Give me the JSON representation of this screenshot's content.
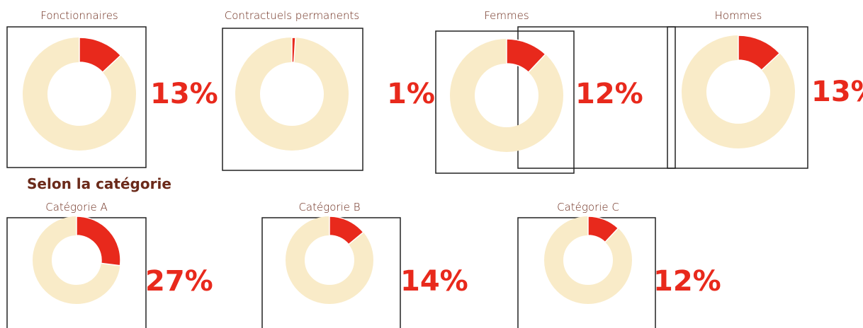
{
  "section_heading": "Selon la catégorie",
  "chart_data": [
    {
      "type": "donut",
      "title": "Fonctionnaires",
      "values": [
        13
      ],
      "value_labels": [
        "13%"
      ],
      "color": "#e8291c",
      "track_color": "#f9ebc8"
    },
    {
      "type": "donut",
      "title": "Contractuels permanents",
      "values": [
        1
      ],
      "value_labels": [
        "1%"
      ],
      "color": "#e8291c",
      "track_color": "#f9ebc8"
    },
    {
      "type": "donut",
      "title": "Femmes",
      "values": [
        12
      ],
      "value_labels": [
        "12%"
      ],
      "color": "#e8291c",
      "track_color": "#f9ebc8"
    },
    {
      "type": "donut",
      "title": "Hommes",
      "values": [
        13
      ],
      "value_labels": [
        "13%"
      ],
      "color": "#e8291c",
      "track_color": "#f9ebc8"
    },
    {
      "type": "donut",
      "title": "Catégorie A",
      "values": [
        27
      ],
      "value_labels": [
        "27%"
      ],
      "color": "#e8291c",
      "track_color": "#f9ebc8"
    },
    {
      "type": "donut",
      "title": "Catégorie B",
      "values": [
        14
      ],
      "value_labels": [
        "14%"
      ],
      "color": "#e8291c",
      "track_color": "#f9ebc8"
    },
    {
      "type": "donut",
      "title": "Catégorie C",
      "values": [
        12
      ],
      "value_labels": [
        "12%"
      ],
      "color": "#e8291c",
      "track_color": "#f9ebc8"
    }
  ]
}
